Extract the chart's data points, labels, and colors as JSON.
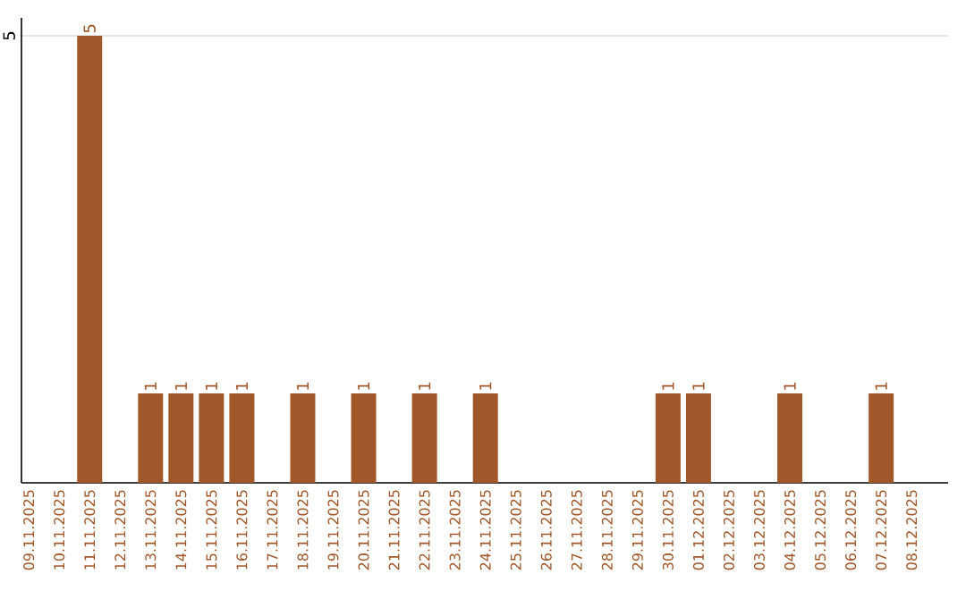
{
  "chart_data": {
    "type": "bar",
    "categories": [
      "09.11.2025",
      "10.11.2025",
      "11.11.2025",
      "12.11.2025",
      "13.11.2025",
      "14.11.2025",
      "15.11.2025",
      "16.11.2025",
      "17.11.2025",
      "18.11.2025",
      "19.11.2025",
      "20.11.2025",
      "21.11.2025",
      "22.11.2025",
      "23.11.2025",
      "24.11.2025",
      "25.11.2025",
      "26.11.2025",
      "27.11.2025",
      "28.11.2025",
      "29.11.2025",
      "30.11.2025",
      "01.12.2025",
      "02.12.2025",
      "03.12.2025",
      "04.12.2025",
      "05.12.2025",
      "06.12.2025",
      "07.12.2025",
      "08.12.2025"
    ],
    "values": [
      0,
      0,
      5,
      0,
      1,
      1,
      1,
      1,
      0,
      1,
      0,
      1,
      0,
      1,
      0,
      1,
      0,
      0,
      0,
      0,
      0,
      1,
      1,
      0,
      0,
      1,
      0,
      0,
      1,
      0
    ],
    "value_labels": [
      null,
      null,
      "5",
      null,
      "1",
      "1",
      "1",
      "1",
      null,
      "1",
      null,
      "1",
      null,
      "1",
      null,
      "1",
      null,
      null,
      null,
      null,
      null,
      "1",
      "1",
      null,
      null,
      "1",
      null,
      null,
      "1",
      null
    ],
    "color": "#a0572a",
    "ylim": [
      0,
      5.2
    ],
    "yticks": [
      5
    ],
    "grid": "y"
  }
}
